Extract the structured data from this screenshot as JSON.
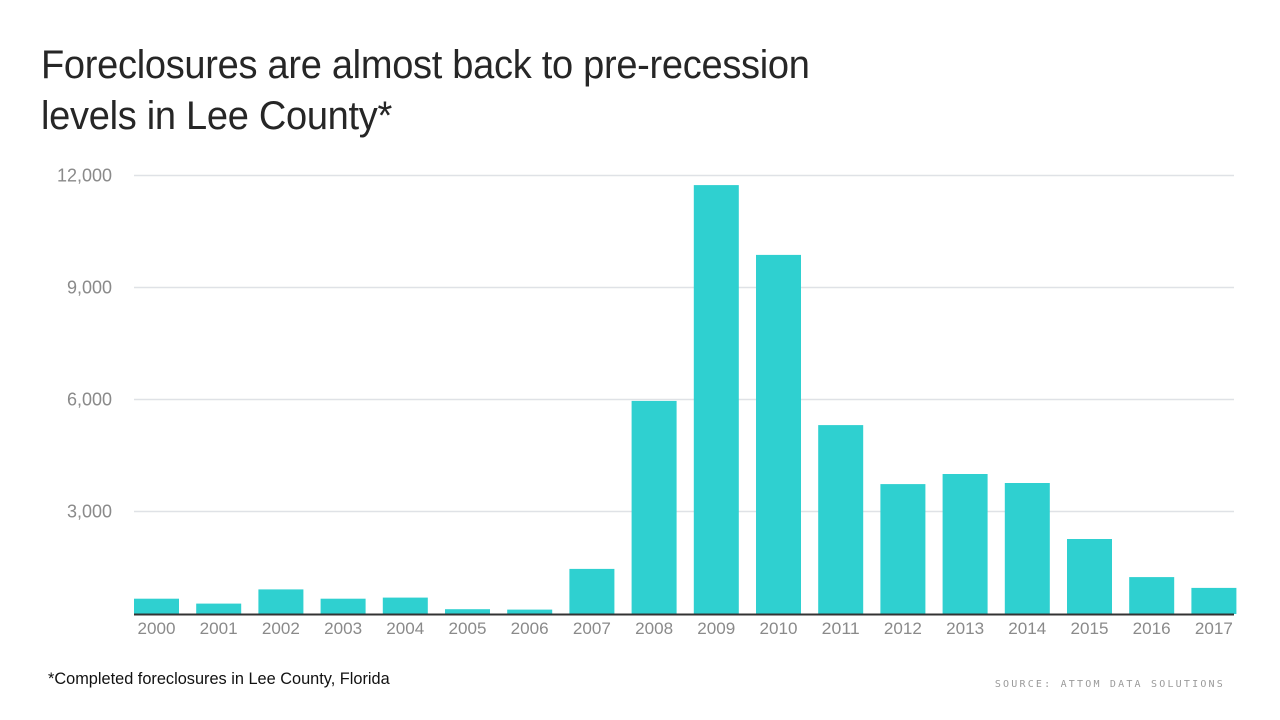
{
  "chart_data": {
    "type": "bar",
    "title": [
      "Foreclosures are almost back to pre-recession",
      "levels in Lee County*"
    ],
    "xlabel": "",
    "ylabel": "",
    "categories": [
      "2000",
      "2001",
      "2002",
      "2003",
      "2004",
      "2005",
      "2006",
      "2007",
      "2008",
      "2009",
      "2010",
      "2011",
      "2012",
      "2013",
      "2014",
      "2015",
      "2016",
      "2017"
    ],
    "values": [
      650,
      520,
      900,
      650,
      680,
      370,
      360,
      1450,
      5950,
      11730,
      9860,
      5300,
      3720,
      3990,
      3750,
      2250,
      1230,
      940
    ],
    "ylim": [
      0,
      12000
    ],
    "yticks": [
      3000,
      6000,
      9000,
      12000
    ],
    "ytick_labels": [
      "3,000",
      "6,000",
      "9,000",
      "12,000"
    ],
    "grid": true,
    "legend": "none",
    "bar_color": "#2bcfcf",
    "footnote": "*Completed foreclosures in Lee County, Florida",
    "source": "SOURCE: ATTOM DATA SOLUTIONS"
  }
}
